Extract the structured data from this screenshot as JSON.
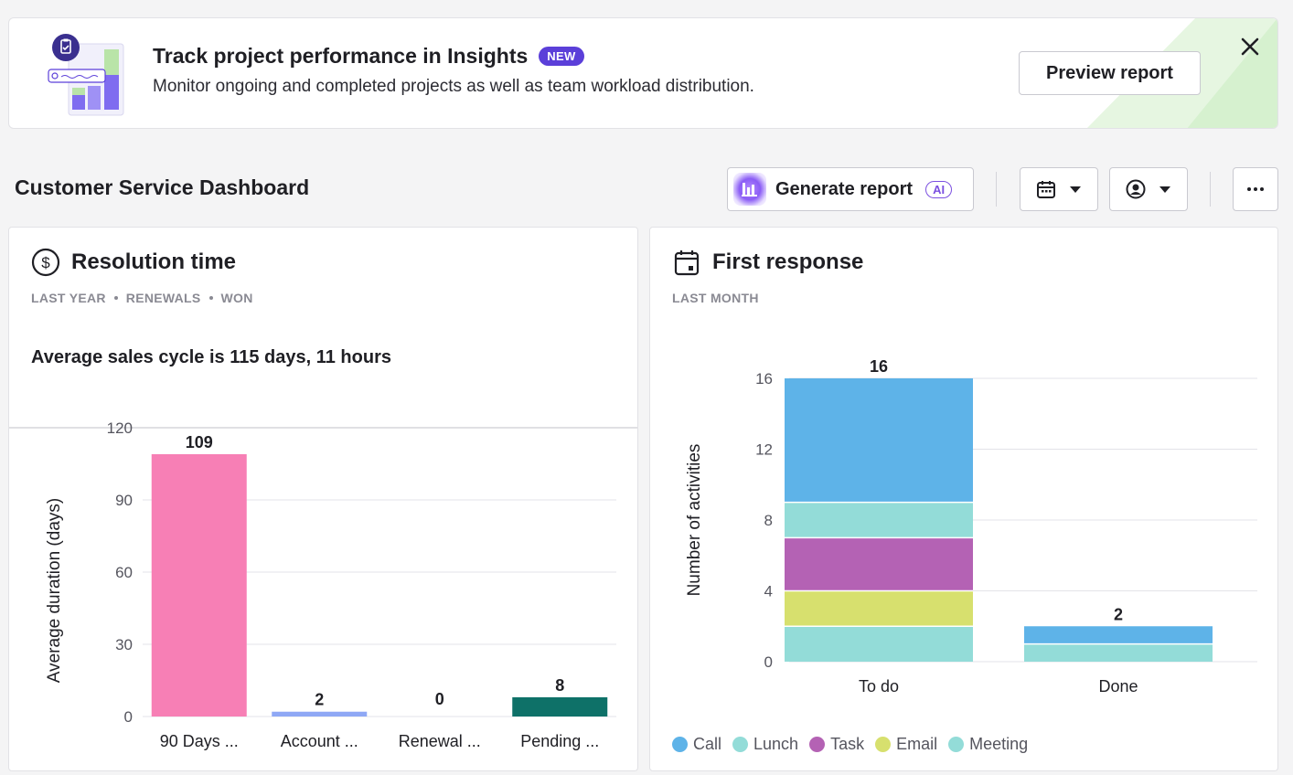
{
  "banner": {
    "title": "Track project performance in Insights",
    "badge": "NEW",
    "description": "Monitor ongoing and completed projects as well as team workload distribution.",
    "preview_button": "Preview report",
    "close_icon": "close-icon"
  },
  "dashboard": {
    "title": "Customer Service Dashboard",
    "generate_button": "Generate report",
    "ai_badge": "AI"
  },
  "colors": {
    "pink": "#f77fb5",
    "periwinkle": "#8fa8f5",
    "teal_dark": "#0e7168",
    "call": "#5eb3e8",
    "lunch": "#93dcd8",
    "task": "#b462b4",
    "email": "#d7e06e",
    "meeting": "#93dcd8",
    "accent": "#5b3fd9"
  },
  "resolution_card": {
    "title": "Resolution time",
    "icon": "dollar-circle-icon",
    "filters": [
      "LAST YEAR",
      "RENEWALS",
      "WON"
    ],
    "summary": "Average sales cycle is 115 days, 11 hours"
  },
  "first_response_card": {
    "title": "First response",
    "icon": "calendar-icon",
    "filters": [
      "LAST MONTH"
    ],
    "legend": [
      {
        "label": "Call",
        "color": "#5eb3e8"
      },
      {
        "label": "Lunch",
        "color": "#93dcd8"
      },
      {
        "label": "Task",
        "color": "#b462b4"
      },
      {
        "label": "Email",
        "color": "#d7e06e"
      },
      {
        "label": "Meeting",
        "color": "#93dcd8"
      }
    ]
  },
  "chart_data": [
    {
      "type": "bar",
      "title": "",
      "xlabel": "",
      "ylabel": "Average duration (days)",
      "ylim": [
        0,
        120
      ],
      "yticks": [
        0,
        30,
        60,
        90,
        120
      ],
      "categories": [
        "90 Days ...",
        "Account ...",
        "Renewal ...",
        "Pending ..."
      ],
      "values": [
        109,
        2,
        0,
        8
      ],
      "colors": [
        "#f77fb5",
        "#8fa8f5",
        "#cccccc",
        "#0e7168"
      ],
      "grid": true
    },
    {
      "type": "bar",
      "stacked": true,
      "title": "",
      "xlabel": "",
      "ylabel": "Number of activities",
      "ylim": [
        0,
        16
      ],
      "yticks": [
        0,
        4,
        8,
        12,
        16
      ],
      "categories": [
        "To do",
        "Done"
      ],
      "totals": [
        16,
        2
      ],
      "series": [
        {
          "name": "Meeting",
          "values": [
            2,
            1
          ],
          "color": "#93dcd8"
        },
        {
          "name": "Email",
          "values": [
            2,
            0
          ],
          "color": "#d7e06e"
        },
        {
          "name": "Task",
          "values": [
            3,
            0
          ],
          "color": "#b462b4"
        },
        {
          "name": "Lunch",
          "values": [
            2,
            0
          ],
          "color": "#93dcd8"
        },
        {
          "name": "Call",
          "values": [
            7,
            1
          ],
          "color": "#5eb3e8"
        }
      ],
      "legend": "bottom-left",
      "grid": true
    }
  ]
}
